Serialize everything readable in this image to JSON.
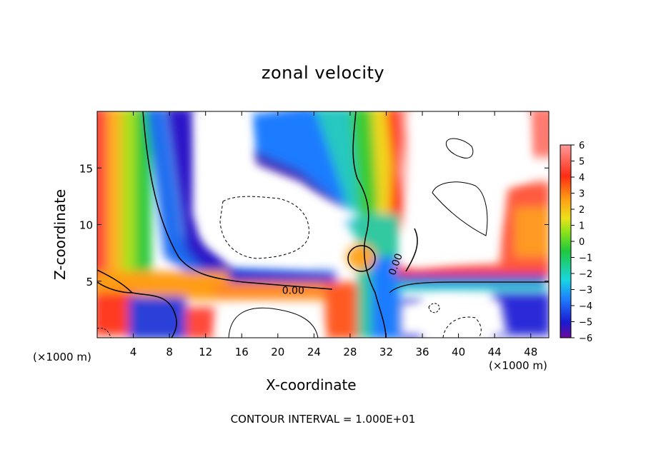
{
  "chart_data": {
    "type": "heatmap",
    "title": "zonal velocity",
    "xlabel": "X-coordinate",
    "ylabel": "Z-coordinate",
    "x_unit_label": "(×1000 m)",
    "x_ticks": [
      4,
      8,
      12,
      16,
      20,
      24,
      28,
      32,
      36,
      40,
      44,
      48
    ],
    "y_ticks": [
      5,
      10,
      15
    ],
    "xlim": [
      0,
      50
    ],
    "ylim": [
      0,
      20
    ],
    "colorbar": {
      "ticks": [
        "6",
        "5",
        "4",
        "3",
        "2",
        "1",
        "0",
        "−1",
        "−2",
        "−3",
        "−4",
        "−5",
        "−6"
      ],
      "range": [
        -6,
        6
      ]
    },
    "contour_labels": [
      {
        "text": "0.00",
        "x": 21.7,
        "y": 4.2
      },
      {
        "text": "0.00",
        "x": 33.0,
        "y": 6.5
      }
    ],
    "footer": "CONTOUR INTERVAL = 1.000E+01",
    "above_range_color": "#ffffff",
    "grid": false
  }
}
